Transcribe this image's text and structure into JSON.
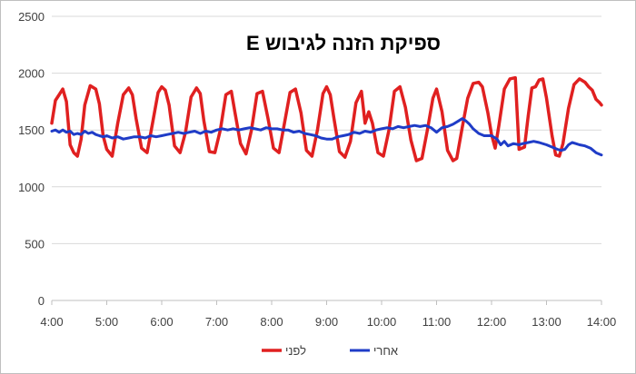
{
  "chart_data": {
    "type": "line",
    "title": "ספיקת הזנה לגיבוש E",
    "xlabel": "",
    "ylabel": "",
    "xlim": [
      "4:00",
      "14:00"
    ],
    "ylim": [
      0,
      2500
    ],
    "y_ticks": [
      0,
      500,
      1000,
      1500,
      2000,
      2500
    ],
    "x_ticks": [
      "4:00",
      "5:00",
      "6:00",
      "7:00",
      "8:00",
      "9:00",
      "10:00",
      "11:00",
      "12:00",
      "13:00",
      "14:00"
    ],
    "grid": "horizontal",
    "legend_position": "bottom",
    "series": [
      {
        "name": "לפני",
        "color": "#e02020",
        "points": [
          [
            "4:00",
            1560
          ],
          [
            "4:04",
            1760
          ],
          [
            "4:08",
            1810
          ],
          [
            "4:12",
            1860
          ],
          [
            "4:16",
            1750
          ],
          [
            "4:20",
            1370
          ],
          [
            "4:24",
            1300
          ],
          [
            "4:28",
            1270
          ],
          [
            "4:32",
            1420
          ],
          [
            "4:36",
            1720
          ],
          [
            "4:42",
            1890
          ],
          [
            "4:48",
            1860
          ],
          [
            "4:52",
            1730
          ],
          [
            "4:56",
            1450
          ],
          [
            "5:00",
            1330
          ],
          [
            "5:06",
            1270
          ],
          [
            "5:12",
            1560
          ],
          [
            "5:18",
            1810
          ],
          [
            "5:24",
            1870
          ],
          [
            "5:28",
            1810
          ],
          [
            "5:32",
            1600
          ],
          [
            "5:38",
            1340
          ],
          [
            "5:44",
            1300
          ],
          [
            "5:50",
            1560
          ],
          [
            "5:56",
            1830
          ],
          [
            "6:00",
            1880
          ],
          [
            "6:04",
            1850
          ],
          [
            "6:08",
            1720
          ],
          [
            "6:14",
            1360
          ],
          [
            "6:20",
            1300
          ],
          [
            "6:26",
            1480
          ],
          [
            "6:32",
            1790
          ],
          [
            "6:38",
            1870
          ],
          [
            "6:42",
            1820
          ],
          [
            "6:46",
            1580
          ],
          [
            "6:52",
            1310
          ],
          [
            "6:58",
            1300
          ],
          [
            "7:04",
            1500
          ],
          [
            "7:10",
            1810
          ],
          [
            "7:16",
            1840
          ],
          [
            "7:20",
            1650
          ],
          [
            "7:26",
            1380
          ],
          [
            "7:32",
            1290
          ],
          [
            "7:38",
            1500
          ],
          [
            "7:44",
            1820
          ],
          [
            "7:50",
            1840
          ],
          [
            "7:56",
            1600
          ],
          [
            "8:02",
            1340
          ],
          [
            "8:08",
            1300
          ],
          [
            "8:14",
            1560
          ],
          [
            "8:20",
            1830
          ],
          [
            "8:26",
            1860
          ],
          [
            "8:32",
            1650
          ],
          [
            "8:38",
            1320
          ],
          [
            "8:44",
            1270
          ],
          [
            "8:50",
            1500
          ],
          [
            "8:56",
            1820
          ],
          [
            "9:00",
            1880
          ],
          [
            "9:04",
            1810
          ],
          [
            "9:08",
            1600
          ],
          [
            "9:14",
            1310
          ],
          [
            "9:20",
            1260
          ],
          [
            "9:26",
            1400
          ],
          [
            "9:32",
            1740
          ],
          [
            "9:38",
            1840
          ],
          [
            "9:42",
            1560
          ],
          [
            "9:46",
            1660
          ],
          [
            "9:50",
            1560
          ],
          [
            "9:56",
            1300
          ],
          [
            "10:02",
            1270
          ],
          [
            "10:08",
            1500
          ],
          [
            "10:14",
            1840
          ],
          [
            "10:20",
            1880
          ],
          [
            "10:26",
            1700
          ],
          [
            "10:32",
            1410
          ],
          [
            "10:38",
            1230
          ],
          [
            "10:44",
            1250
          ],
          [
            "10:50",
            1500
          ],
          [
            "10:56",
            1780
          ],
          [
            "11:00",
            1860
          ],
          [
            "11:06",
            1660
          ],
          [
            "11:12",
            1320
          ],
          [
            "11:18",
            1230
          ],
          [
            "11:22",
            1250
          ],
          [
            "11:28",
            1520
          ],
          [
            "11:34",
            1780
          ],
          [
            "11:40",
            1910
          ],
          [
            "11:46",
            1920
          ],
          [
            "11:50",
            1880
          ],
          [
            "11:56",
            1650
          ],
          [
            "12:00",
            1460
          ],
          [
            "12:04",
            1340
          ],
          [
            "12:08",
            1540
          ],
          [
            "12:14",
            1860
          ],
          [
            "12:20",
            1950
          ],
          [
            "12:26",
            1960
          ],
          [
            "12:30",
            1330
          ],
          [
            "12:36",
            1350
          ],
          [
            "12:40",
            1620
          ],
          [
            "12:44",
            1870
          ],
          [
            "12:48",
            1880
          ],
          [
            "12:52",
            1940
          ],
          [
            "12:56",
            1950
          ],
          [
            "13:00",
            1780
          ],
          [
            "13:06",
            1450
          ],
          [
            "13:10",
            1280
          ],
          [
            "13:14",
            1270
          ],
          [
            "13:18",
            1380
          ],
          [
            "13:24",
            1690
          ],
          [
            "13:30",
            1900
          ],
          [
            "13:36",
            1950
          ],
          [
            "13:42",
            1920
          ],
          [
            "13:46",
            1880
          ],
          [
            "13:50",
            1850
          ],
          [
            "13:54",
            1770
          ],
          [
            "13:58",
            1740
          ],
          [
            "14:00",
            1720
          ]
        ]
      },
      {
        "name": "אחרי",
        "color": "#1f3cc7",
        "points": [
          [
            "4:00",
            1490
          ],
          [
            "4:04",
            1500
          ],
          [
            "4:08",
            1480
          ],
          [
            "4:12",
            1500
          ],
          [
            "4:16",
            1480
          ],
          [
            "4:20",
            1490
          ],
          [
            "4:24",
            1460
          ],
          [
            "4:28",
            1470
          ],
          [
            "4:32",
            1460
          ],
          [
            "4:36",
            1490
          ],
          [
            "4:40",
            1470
          ],
          [
            "4:44",
            1480
          ],
          [
            "4:48",
            1460
          ],
          [
            "4:52",
            1450
          ],
          [
            "4:56",
            1440
          ],
          [
            "5:00",
            1450
          ],
          [
            "5:06",
            1430
          ],
          [
            "5:12",
            1440
          ],
          [
            "5:18",
            1420
          ],
          [
            "5:24",
            1430
          ],
          [
            "5:30",
            1440
          ],
          [
            "5:36",
            1440
          ],
          [
            "5:42",
            1430
          ],
          [
            "5:48",
            1450
          ],
          [
            "5:54",
            1440
          ],
          [
            "6:00",
            1450
          ],
          [
            "6:06",
            1460
          ],
          [
            "6:12",
            1470
          ],
          [
            "6:18",
            1480
          ],
          [
            "6:24",
            1470
          ],
          [
            "6:30",
            1480
          ],
          [
            "6:36",
            1490
          ],
          [
            "6:42",
            1470
          ],
          [
            "6:48",
            1490
          ],
          [
            "6:54",
            1480
          ],
          [
            "7:00",
            1500
          ],
          [
            "7:06",
            1510
          ],
          [
            "7:12",
            1500
          ],
          [
            "7:18",
            1510
          ],
          [
            "7:24",
            1500
          ],
          [
            "7:30",
            1510
          ],
          [
            "7:36",
            1520
          ],
          [
            "7:42",
            1510
          ],
          [
            "7:48",
            1500
          ],
          [
            "7:54",
            1520
          ],
          [
            "8:00",
            1510
          ],
          [
            "8:06",
            1510
          ],
          [
            "8:12",
            1500
          ],
          [
            "8:18",
            1500
          ],
          [
            "8:24",
            1480
          ],
          [
            "8:30",
            1490
          ],
          [
            "8:36",
            1470
          ],
          [
            "8:42",
            1460
          ],
          [
            "8:48",
            1450
          ],
          [
            "8:54",
            1430
          ],
          [
            "9:00",
            1420
          ],
          [
            "9:06",
            1420
          ],
          [
            "9:12",
            1440
          ],
          [
            "9:18",
            1450
          ],
          [
            "9:24",
            1460
          ],
          [
            "9:30",
            1480
          ],
          [
            "9:36",
            1470
          ],
          [
            "9:42",
            1490
          ],
          [
            "9:48",
            1480
          ],
          [
            "9:54",
            1500
          ],
          [
            "10:00",
            1510
          ],
          [
            "10:06",
            1520
          ],
          [
            "10:12",
            1510
          ],
          [
            "10:18",
            1530
          ],
          [
            "10:24",
            1520
          ],
          [
            "10:30",
            1530
          ],
          [
            "10:36",
            1540
          ],
          [
            "10:42",
            1530
          ],
          [
            "10:48",
            1540
          ],
          [
            "10:54",
            1520
          ],
          [
            "11:00",
            1480
          ],
          [
            "11:06",
            1520
          ],
          [
            "11:12",
            1530
          ],
          [
            "11:18",
            1550
          ],
          [
            "11:24",
            1580
          ],
          [
            "11:28",
            1600
          ],
          [
            "11:32",
            1580
          ],
          [
            "11:36",
            1550
          ],
          [
            "11:40",
            1510
          ],
          [
            "11:46",
            1470
          ],
          [
            "11:52",
            1450
          ],
          [
            "12:00",
            1450
          ],
          [
            "12:06",
            1420
          ],
          [
            "12:10",
            1370
          ],
          [
            "12:14",
            1400
          ],
          [
            "12:18",
            1360
          ],
          [
            "12:24",
            1380
          ],
          [
            "12:30",
            1370
          ],
          [
            "12:34",
            1380
          ],
          [
            "12:40",
            1390
          ],
          [
            "12:46",
            1400
          ],
          [
            "12:52",
            1390
          ],
          [
            "13:00",
            1370
          ],
          [
            "13:06",
            1350
          ],
          [
            "13:12",
            1330
          ],
          [
            "13:16",
            1320
          ],
          [
            "13:20",
            1330
          ],
          [
            "13:24",
            1370
          ],
          [
            "13:28",
            1390
          ],
          [
            "13:32",
            1380
          ],
          [
            "13:36",
            1370
          ],
          [
            "13:42",
            1360
          ],
          [
            "13:48",
            1340
          ],
          [
            "13:54",
            1300
          ],
          [
            "14:00",
            1280
          ]
        ]
      }
    ]
  }
}
